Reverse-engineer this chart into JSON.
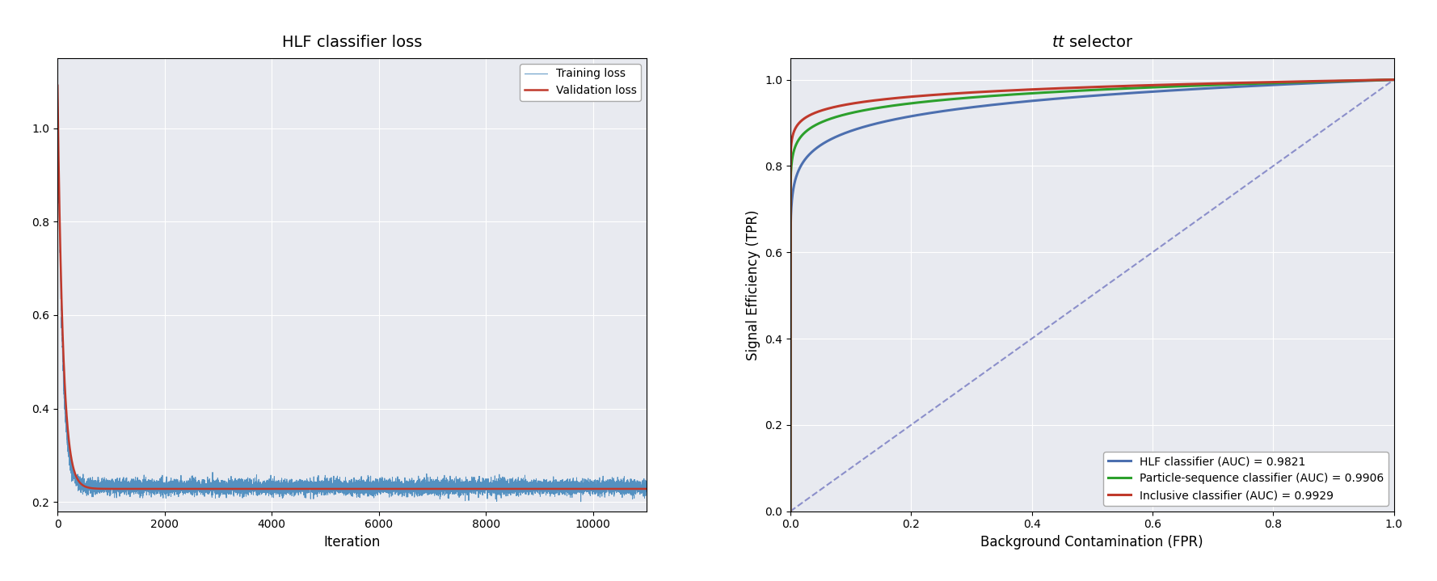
{
  "fig_width": 17.78,
  "fig_height": 7.19,
  "fig_dpi": 100,
  "fig_bg_color": "#ffffff",
  "black_strip_color": "#111111",
  "plot_bg_color": "#e8eaf0",
  "left_title": "HLF classifier loss",
  "left_xlabel": "Iteration",
  "left_ylabel": "",
  "left_xlim": [
    0,
    11000
  ],
  "left_ylim": [
    0.18,
    1.15
  ],
  "left_yticks": [
    0.2,
    0.4,
    0.6,
    0.8,
    1.0
  ],
  "left_xticks": [
    0,
    2000,
    4000,
    6000,
    8000,
    10000
  ],
  "train_color": "#4c8cbf",
  "val_color": "#c0392b",
  "right_title": "$\\mathit{tt}$ selector",
  "right_xlabel": "Background Contamination (FPR)",
  "right_ylabel": "Signal Efficiency (TPR)",
  "right_xlim": [
    0.0,
    1.0
  ],
  "right_ylim": [
    0.0,
    1.05
  ],
  "right_xticks": [
    0.0,
    0.2,
    0.4,
    0.6,
    0.8,
    1.0
  ],
  "right_yticks": [
    0.0,
    0.2,
    0.4,
    0.6,
    0.8,
    1.0
  ],
  "roc_hlf_color": "#4c6faf",
  "roc_ps_color": "#2ca02c",
  "roc_inc_color": "#c0392b",
  "roc_diag_color": "#7b7fc4",
  "legend_labels_roc": [
    "HLF classifier (AUC) = 0.9821",
    "Particle-sequence classifier (AUC) = 0.9906",
    "Inclusive classifier (AUC) = 0.9929"
  ],
  "legend_labels_loss": [
    "Training loss",
    "Validation loss"
  ],
  "n_train": 11000,
  "seed": 42,
  "train_noise_std": 0.008,
  "train_a": 1.12,
  "train_b": 0.232,
  "train_c": 0.012,
  "val_a": 1.1,
  "val_b": 0.228,
  "val_c": 0.01
}
